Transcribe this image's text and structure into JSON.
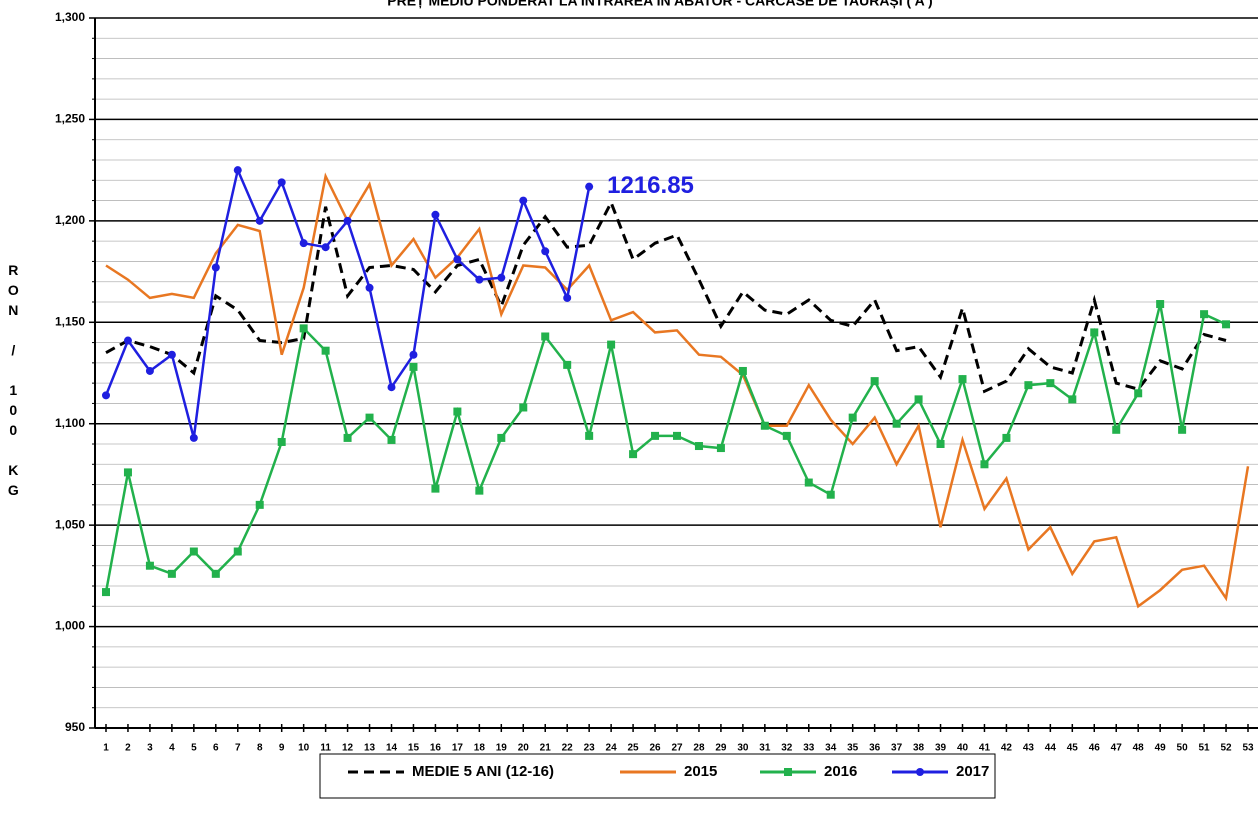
{
  "chart_data": {
    "type": "line",
    "title": "PREȚ MEDIU PONDERAT LA INTRAREA IN ABATOR - CARCASE DE TAURAȘI ( A )",
    "ylabel": "RON / 100 KG",
    "categories": [
      "1",
      "2",
      "3",
      "4",
      "5",
      "6",
      "7",
      "8",
      "9",
      "10",
      "11",
      "12",
      "13",
      "14",
      "15",
      "16",
      "17",
      "18",
      "19",
      "20",
      "21",
      "22",
      "23",
      "24",
      "25",
      "26",
      "27",
      "28",
      "29",
      "30",
      "31",
      "32",
      "33",
      "34",
      "35",
      "36",
      "37",
      "38",
      "39",
      "40",
      "41",
      "42",
      "43",
      "44",
      "45",
      "46",
      "47",
      "48",
      "49",
      "50",
      "51",
      "52",
      "53"
    ],
    "ylim": [
      950,
      1300
    ],
    "yticks": [
      950,
      {
        "value": 1000,
        "label": "1,000"
      },
      {
        "value": 1050,
        "label": "1,050"
      },
      {
        "value": 1100,
        "label": "1,100"
      },
      {
        "value": 1150,
        "label": "1,150"
      },
      {
        "value": 1200,
        "label": "1,200"
      },
      {
        "value": 1250,
        "label": "1,250"
      },
      {
        "value": 1300,
        "label": "1,300"
      }
    ],
    "minor_yticks": [
      960,
      970,
      980,
      990,
      1010,
      1020,
      1030,
      1040,
      1060,
      1070,
      1080,
      1090,
      1110,
      1120,
      1130,
      1140,
      1160,
      1170,
      1180,
      1190,
      1210,
      1220,
      1230,
      1240,
      1260,
      1270,
      1280,
      1290
    ],
    "grid": true,
    "legend": "bottom",
    "series": [
      {
        "name": "MEDIE 5 ANI (12-16)",
        "color": "#000000",
        "line_style": "dashed",
        "marker": null,
        "values": [
          1135,
          1141,
          1138,
          1134,
          1125,
          1163,
          1156,
          1141,
          1140,
          1142,
          1207,
          1163,
          1177,
          1178,
          1176,
          1165,
          1178,
          1181,
          1158,
          1188,
          1202,
          1187,
          1188,
          1209,
          1181,
          1189,
          1193,
          1171,
          1148,
          1165,
          1156,
          1154,
          1161,
          1151,
          1148,
          1161,
          1136,
          1138,
          1123,
          1157,
          1116,
          1121,
          1137,
          1128,
          1125,
          1161,
          1120,
          1117,
          1131,
          1127,
          1144,
          1141,
          null
        ]
      },
      {
        "name": "2015",
        "color": "#e87722",
        "line_style": "solid",
        "marker": null,
        "values": [
          1178,
          1171,
          1162,
          1164,
          1162,
          1184,
          1198,
          1195,
          1134,
          1167,
          1222,
          1200,
          1218,
          1178,
          1191,
          1172,
          1182,
          1196,
          1154,
          1178,
          1177,
          1166,
          1178,
          1151,
          1155,
          1145,
          1146,
          1134,
          1133,
          1124,
          1099,
          1099,
          1119,
          1102,
          1090,
          1103,
          1080,
          1099,
          1049,
          1092,
          1058,
          1073,
          1038,
          1049,
          1026,
          1042,
          1044,
          1010,
          1018,
          1028,
          1030,
          1014,
          1079
        ]
      },
      {
        "name": "2016",
        "color": "#22b14c",
        "line_style": "solid",
        "marker": "square",
        "values": [
          1017,
          1076,
          1030,
          1026,
          1037,
          1026,
          1037,
          1060,
          1091,
          1147,
          1136,
          1093,
          1103,
          1092,
          1128,
          1068,
          1106,
          1067,
          1093,
          1108,
          1143,
          1129,
          1094,
          1139,
          1085,
          1094,
          1094,
          1089,
          1088,
          1126,
          1099,
          1094,
          1071,
          1065,
          1103,
          1121,
          1100,
          1112,
          1090,
          1122,
          1080,
          1093,
          1119,
          1120,
          1112,
          1145,
          1097,
          1115,
          1159,
          1097,
          1154,
          1149,
          null
        ]
      },
      {
        "name": "2017",
        "color": "#1f1fe0",
        "line_style": "solid",
        "marker": "circle",
        "values": [
          1114,
          1141,
          1126,
          1134,
          1093,
          1177,
          1225,
          1200,
          1219,
          1189,
          1187,
          1200,
          1167,
          1118,
          1134,
          1203,
          1181,
          1171,
          1172,
          1210,
          1185,
          1162,
          1216.85,
          null,
          null,
          null,
          null,
          null,
          null,
          null,
          null,
          null,
          null,
          null,
          null,
          null,
          null,
          null,
          null,
          null,
          null,
          null,
          null,
          null,
          null,
          null,
          null,
          null,
          null,
          null,
          null,
          null,
          null
        ],
        "labeled_point": 22
      }
    ]
  }
}
